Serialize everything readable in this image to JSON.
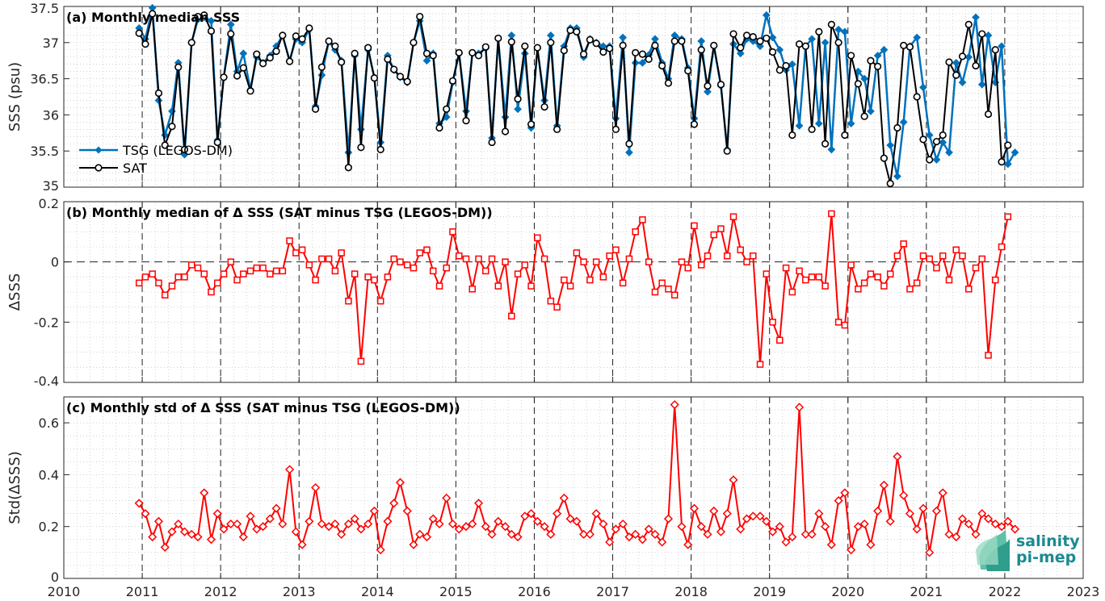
{
  "chart_data": [
    {
      "type": "line",
      "title": "(a) Monthly median SSS",
      "ylabel": "SSS (psu)",
      "xlim": [
        2010,
        2023
      ],
      "ylim": [
        35,
        37.5
      ],
      "yticks": [
        "35",
        "35.5",
        "36",
        "36.5",
        "37",
        "37.5"
      ],
      "legend_position": "middle-left",
      "grid": true,
      "series": [
        {
          "name": "TSG (LEGOS-DM)",
          "color": "#0072BD",
          "marker": "diamond",
          "id": "tsg"
        },
        {
          "name": "SAT",
          "color": "#000000",
          "marker": "circle",
          "id": "sat"
        }
      ]
    },
    {
      "type": "line",
      "title": "(b) Monthly median of Δ SSS (SAT minus TSG (LEGOS-DM))",
      "ylabel": "ΔSSS",
      "xlim": [
        2010,
        2023
      ],
      "ylim": [
        -0.4,
        0.2
      ],
      "yticks": [
        "-0.4",
        "-0.2",
        "0",
        "0.2"
      ],
      "grid": true,
      "series": [
        {
          "color": "#ff0000",
          "marker": "square",
          "id": "dmed"
        }
      ]
    },
    {
      "type": "line",
      "title": "(c) Monthly std of Δ SSS (SAT minus TSG (LEGOS-DM))",
      "ylabel": "Std(ΔSSS)",
      "xlim": [
        2010,
        2023
      ],
      "ylim": [
        0,
        0.7
      ],
      "yticks": [
        "0",
        "0.2",
        "0.4",
        "0.6"
      ],
      "grid": true,
      "series": [
        {
          "color": "#ff0000",
          "marker": "diamond",
          "id": "dstd"
        }
      ]
    }
  ],
  "series_values": {
    "x": [
      2010.96,
      2011.04,
      2011.13,
      2011.21,
      2011.29,
      2011.38,
      2011.46,
      2011.54,
      2011.63,
      2011.71,
      2011.79,
      2011.88,
      2011.96,
      2012.04,
      2012.13,
      2012.21,
      2012.29,
      2012.38,
      2012.46,
      2012.54,
      2012.63,
      2012.71,
      2012.79,
      2012.88,
      2012.96,
      2013.04,
      2013.13,
      2013.21,
      2013.29,
      2013.38,
      2013.46,
      2013.54,
      2013.63,
      2013.71,
      2013.79,
      2013.88,
      2013.96,
      2014.04,
      2014.13,
      2014.21,
      2014.29,
      2014.38,
      2014.46,
      2014.54,
      2014.63,
      2014.71,
      2014.79,
      2014.88,
      2014.96,
      2015.04,
      2015.13,
      2015.21,
      2015.29,
      2015.38,
      2015.46,
      2015.54,
      2015.63,
      2015.71,
      2015.79,
      2015.88,
      2015.96,
      2016.04,
      2016.13,
      2016.21,
      2016.29,
      2016.38,
      2016.46,
      2016.54,
      2016.63,
      2016.71,
      2016.79,
      2016.88,
      2016.96,
      2017.04,
      2017.13,
      2017.21,
      2017.29,
      2017.38,
      2017.46,
      2017.54,
      2017.63,
      2017.71,
      2017.79,
      2017.88,
      2017.96,
      2018.04,
      2018.13,
      2018.21,
      2018.29,
      2018.38,
      2018.46,
      2018.54,
      2018.63,
      2018.71,
      2018.79,
      2018.88,
      2018.96,
      2019.04,
      2019.13,
      2019.21,
      2019.29,
      2019.38,
      2019.46,
      2019.54,
      2019.63,
      2019.71,
      2019.79,
      2019.88,
      2019.96,
      2020.04,
      2020.13,
      2020.21,
      2020.29,
      2020.38,
      2020.46,
      2020.54,
      2020.63,
      2020.71,
      2020.79,
      2020.88,
      2020.96,
      2021.04,
      2021.13,
      2021.21,
      2021.29,
      2021.38,
      2021.46,
      2021.54,
      2021.63,
      2021.71,
      2021.79,
      2021.88,
      2021.96,
      2022.04,
      2022.13
    ],
    "tsg": [
      37.2,
      37.05,
      37.48,
      36.2,
      35.72,
      36.05,
      36.72,
      35.45,
      37.0,
      37.32,
      37.35,
      37.3,
      35.65,
      36.52,
      37.25,
      36.6,
      36.85,
      36.35,
      36.8,
      36.72,
      36.82,
      36.95,
      37.1,
      36.75,
      37.05,
      37.0,
      37.18,
      36.12,
      36.55,
      37.02,
      36.9,
      36.75,
      35.48,
      36.82,
      35.8,
      36.9,
      36.52,
      35.62,
      36.82,
      36.62,
      36.52,
      36.45,
      37.0,
      37.3,
      36.75,
      36.85,
      35.88,
      35.97,
      36.45,
      36.85,
      36.05,
      36.85,
      36.85,
      36.92,
      35.68,
      37.05,
      35.97,
      37.1,
      36.08,
      36.85,
      35.82,
      36.92,
      36.2,
      37.1,
      35.85,
      36.95,
      37.2,
      37.2,
      36.8,
      37.05,
      37.0,
      36.95,
      36.95,
      35.95,
      37.07,
      35.48,
      36.72,
      36.72,
      36.83,
      37.05,
      36.72,
      36.5,
      37.1,
      37.05,
      36.65,
      35.95,
      37.02,
      36.32,
      36.95,
      36.4,
      35.52,
      36.98,
      36.85,
      37.05,
      37.02,
      36.95,
      37.38,
      37.07,
      36.9,
      36.62,
      36.7,
      35.85,
      36.95,
      37.05,
      35.88,
      37.0,
      35.52,
      37.18,
      37.15,
      35.88,
      36.6,
      36.5,
      36.05,
      36.82,
      36.9,
      35.58,
      35.15,
      35.9,
      36.95,
      37.07,
      36.38,
      35.72,
      35.38,
      35.62,
      35.48,
      36.72,
      36.45,
      36.8,
      37.35,
      36.42,
      37.1,
      36.45,
      36.95,
      35.32,
      35.48
    ],
    "sat": [
      37.13,
      36.98,
      37.4,
      36.3,
      35.58,
      35.84,
      36.66,
      35.52,
      37.0,
      37.36,
      37.38,
      37.16,
      35.62,
      36.52,
      37.12,
      36.54,
      36.65,
      36.33,
      36.84,
      36.71,
      36.79,
      36.88,
      37.1,
      36.74,
      37.09,
      37.05,
      37.2,
      36.08,
      36.66,
      37.02,
      36.95,
      36.73,
      35.27,
      36.85,
      35.55,
      36.93,
      36.51,
      35.52,
      36.77,
      36.63,
      36.53,
      36.46,
      37.0,
      37.36,
      36.85,
      36.82,
      35.82,
      36.08,
      36.47,
      36.86,
      35.92,
      36.86,
      36.82,
      36.94,
      35.62,
      37.06,
      35.77,
      37.01,
      36.22,
      36.95,
      35.87,
      36.93,
      36.11,
      37.0,
      35.8,
      36.89,
      37.17,
      37.15,
      36.84,
      37.04,
      36.99,
      36.87,
      36.92,
      35.8,
      36.96,
      35.6,
      36.86,
      36.84,
      36.77,
      36.96,
      36.68,
      36.44,
      37.02,
      37.02,
      36.61,
      35.87,
      36.9,
      36.4,
      36.96,
      36.42,
      35.5,
      37.12,
      36.93,
      37.1,
      37.08,
      37.02,
      37.06,
      36.87,
      36.62,
      36.68,
      35.72,
      36.98,
      36.95,
      35.8,
      37.15,
      35.6,
      37.25,
      37.0,
      35.72,
      36.82,
      36.43,
      35.98,
      36.75,
      36.67,
      35.4,
      35.05,
      35.82,
      36.96,
      36.94,
      36.25,
      35.66,
      35.38,
      35.63,
      35.72,
      36.73,
      36.55,
      36.81,
      37.25,
      36.68,
      37.12,
      36.01,
      36.9,
      35.35,
      35.58
    ],
    "dmed": [
      -0.07,
      -0.05,
      -0.04,
      -0.07,
      -0.11,
      -0.08,
      -0.05,
      -0.05,
      -0.01,
      -0.02,
      -0.04,
      -0.1,
      -0.07,
      -0.04,
      0.0,
      -0.06,
      -0.04,
      -0.03,
      -0.02,
      -0.02,
      -0.04,
      -0.03,
      -0.03,
      0.07,
      0.03,
      0.04,
      -0.01,
      -0.06,
      0.01,
      0.01,
      -0.03,
      0.03,
      -0.13,
      -0.04,
      -0.33,
      -0.05,
      -0.06,
      -0.13,
      -0.05,
      0.01,
      0.0,
      -0.01,
      -0.02,
      0.03,
      0.04,
      -0.03,
      -0.08,
      -0.02,
      0.1,
      0.02,
      0.01,
      -0.09,
      0.01,
      -0.03,
      0.01,
      -0.08,
      0.0,
      -0.18,
      -0.04,
      -0.01,
      -0.08,
      0.08,
      0.01,
      -0.13,
      -0.15,
      -0.06,
      -0.08,
      0.03,
      0.0,
      -0.06,
      0.0,
      -0.05,
      0.02,
      0.04,
      -0.07,
      0.01,
      0.1,
      0.14,
      0.0,
      -0.1,
      -0.07,
      -0.09,
      -0.11,
      0.0,
      -0.02,
      0.12,
      -0.01,
      0.02,
      0.09,
      0.11,
      0.02,
      0.15,
      0.04,
      0.0,
      0.02,
      -0.34,
      -0.04,
      -0.2,
      -0.26,
      -0.02,
      -0.1,
      -0.03,
      -0.06,
      -0.05,
      -0.05,
      -0.08,
      0.16,
      -0.2,
      -0.21,
      -0.01,
      -0.09,
      -0.07,
      -0.04,
      -0.05,
      -0.08,
      -0.04,
      0.02,
      0.06,
      -0.09,
      -0.07,
      0.02,
      0.01,
      -0.02,
      0.02,
      -0.06,
      0.04,
      0.02,
      -0.09,
      -0.02,
      0.01,
      -0.31,
      -0.06,
      0.05,
      0.15
    ],
    "dstd": [
      0.29,
      0.25,
      0.16,
      0.22,
      0.12,
      0.18,
      0.21,
      0.18,
      0.17,
      0.16,
      0.33,
      0.15,
      0.25,
      0.19,
      0.21,
      0.21,
      0.16,
      0.24,
      0.19,
      0.2,
      0.23,
      0.27,
      0.21,
      0.42,
      0.18,
      0.13,
      0.22,
      0.35,
      0.21,
      0.2,
      0.21,
      0.17,
      0.21,
      0.23,
      0.19,
      0.21,
      0.26,
      0.11,
      0.22,
      0.29,
      0.37,
      0.26,
      0.13,
      0.17,
      0.16,
      0.23,
      0.21,
      0.31,
      0.21,
      0.19,
      0.2,
      0.21,
      0.29,
      0.2,
      0.17,
      0.22,
      0.2,
      0.17,
      0.16,
      0.24,
      0.25,
      0.22,
      0.2,
      0.17,
      0.25,
      0.31,
      0.23,
      0.22,
      0.17,
      0.17,
      0.25,
      0.21,
      0.14,
      0.19,
      0.21,
      0.16,
      0.17,
      0.15,
      0.19,
      0.17,
      0.14,
      0.23,
      0.67,
      0.2,
      0.13,
      0.27,
      0.2,
      0.17,
      0.26,
      0.18,
      0.25,
      0.38,
      0.19,
      0.23,
      0.24,
      0.24,
      0.22,
      0.18,
      0.2,
      0.14,
      0.16,
      0.66,
      0.17,
      0.17,
      0.25,
      0.2,
      0.13,
      0.3,
      0.33,
      0.11,
      0.2,
      0.21,
      0.13,
      0.26,
      0.36,
      0.22,
      0.47,
      0.32,
      0.25,
      0.19,
      0.27,
      0.1,
      0.26,
      0.33,
      0.17,
      0.16,
      0.23,
      0.21,
      0.17,
      0.25,
      0.23,
      0.21,
      0.2,
      0.22,
      0.19
    ]
  },
  "xaxis": {
    "ticks": [
      "2010",
      "2011",
      "2012",
      "2013",
      "2014",
      "2015",
      "2016",
      "2017",
      "2018",
      "2019",
      "2020",
      "2021",
      "2022",
      "2023"
    ],
    "year_lines": [
      2011,
      2012,
      2013,
      2014,
      2015,
      2016,
      2017,
      2018,
      2019,
      2020,
      2021,
      2022
    ]
  },
  "logo": {
    "line1": "salinity",
    "line2": "pi-mep",
    "color": "#1a8a8e"
  }
}
